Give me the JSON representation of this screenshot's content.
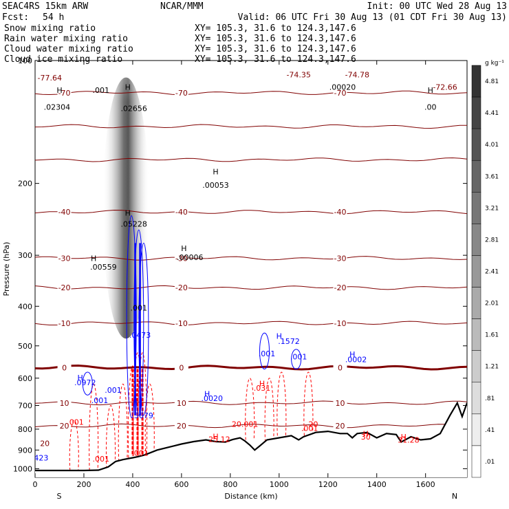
{
  "header": {
    "model": "SEAC4RS 15km ARW",
    "fcst_label": "Fcst:",
    "fcst_value": "54 h",
    "center": "NCAR/MMM",
    "init": "Init: 00 UTC Wed 28 Aug 13",
    "valid": "Valid: 06 UTC Fri 30 Aug 13 (01 CDT Fri 30 Aug 13)"
  },
  "fields": [
    {
      "name": "Snow mixing ratio",
      "xy": "XY= 105.3, 31.6 to 124.3,147.6",
      "color": "#000000"
    },
    {
      "name": "Rain water mixing ratio",
      "xy": "XY= 105.3, 31.6 to 124.3,147.6",
      "color": "#ff0000"
    },
    {
      "name": "Cloud water mixing ratio",
      "xy": "XY= 105.3, 31.6 to 124.3,147.6",
      "color": "#0000ff"
    },
    {
      "name": "Cloud ice mixing ratio",
      "xy": "XY= 105.3, 31.6 to 124.3,147.6",
      "color": "#000000"
    }
  ],
  "chart_data": {
    "type": "heatmap",
    "xlabel": "Distance (km)",
    "ylabel": "Pressure (hPa)",
    "xlim": [
      0,
      1770
    ],
    "ylim": [
      1050,
      100
    ],
    "x_ticks": [
      "0",
      "200",
      "400",
      "600",
      "800",
      "1000",
      "1200",
      "1400",
      "1600"
    ],
    "x_tick_values": [
      0,
      200,
      400,
      600,
      800,
      1000,
      1200,
      1400,
      1600
    ],
    "y_ticks": [
      "100",
      "200",
      "300",
      "400",
      "500",
      "600",
      "700",
      "800",
      "900",
      "1000"
    ],
    "y_tick_values": [
      100,
      200,
      300,
      400,
      500,
      600,
      700,
      800,
      900,
      1000
    ],
    "x_end_labels": {
      "left": "S",
      "right": "N"
    },
    "colorbar": {
      "unit": "g kg⁻¹",
      "ticks": [
        "4.81",
        "4.41",
        "4.01",
        "3.61",
        "3.21",
        "2.81",
        "2.41",
        "2.01",
        "1.61",
        "1.21",
        ".81",
        ".41",
        ".01"
      ],
      "values": [
        4.81,
        4.41,
        4.01,
        3.61,
        3.21,
        2.81,
        2.41,
        2.01,
        1.61,
        1.21,
        0.81,
        0.41,
        0.01
      ],
      "color_low": "#ffffff",
      "color_high": "#333333"
    },
    "isotherms": [
      {
        "value": -70,
        "label": "-70",
        "p": 120
      },
      {
        "value": -60,
        "label": "",
        "p": 145
      },
      {
        "value": -50,
        "label": "",
        "p": 175
      },
      {
        "value": -40,
        "label": "-40",
        "p": 235
      },
      {
        "value": -30,
        "label": "-30",
        "p": 305
      },
      {
        "value": -20,
        "label": "-20",
        "p": 360
      },
      {
        "value": -10,
        "label": "-10",
        "p": 440
      },
      {
        "value": 0,
        "label": "0",
        "p": 565
      },
      {
        "value": 10,
        "label": "10",
        "p": 690
      },
      {
        "value": 20,
        "label": "20",
        "p": 785
      }
    ],
    "isotherm_colors": {
      "normal": "#800000",
      "freezing": "#800000"
    },
    "terrain": [
      [
        0,
        1010
      ],
      [
        100,
        1010
      ],
      [
        200,
        1010
      ],
      [
        260,
        1008
      ],
      [
        300,
        990
      ],
      [
        330,
        960
      ],
      [
        360,
        950
      ],
      [
        380,
        945
      ],
      [
        400,
        940
      ],
      [
        420,
        935
      ],
      [
        450,
        925
      ],
      [
        500,
        900
      ],
      [
        550,
        885
      ],
      [
        600,
        870
      ],
      [
        650,
        858
      ],
      [
        700,
        850
      ],
      [
        740,
        858
      ],
      [
        780,
        860
      ],
      [
        810,
        848
      ],
      [
        840,
        840
      ],
      [
        860,
        855
      ],
      [
        880,
        875
      ],
      [
        900,
        900
      ],
      [
        920,
        880
      ],
      [
        950,
        850
      ],
      [
        1000,
        840
      ],
      [
        1050,
        830
      ],
      [
        1080,
        850
      ],
      [
        1100,
        835
      ],
      [
        1150,
        815
      ],
      [
        1200,
        810
      ],
      [
        1250,
        820
      ],
      [
        1280,
        820
      ],
      [
        1300,
        840
      ],
      [
        1320,
        820
      ],
      [
        1360,
        815
      ],
      [
        1400,
        840
      ],
      [
        1440,
        820
      ],
      [
        1480,
        825
      ],
      [
        1500,
        860
      ],
      [
        1540,
        835
      ],
      [
        1580,
        850
      ],
      [
        1620,
        845
      ],
      [
        1660,
        820
      ],
      [
        1700,
        740
      ],
      [
        1730,
        690
      ],
      [
        1750,
        745
      ],
      [
        1770,
        690
      ]
    ],
    "annotations": [
      {
        "text": "H",
        "x": 100,
        "p": 120,
        "color": "#000000"
      },
      {
        "text": ".02304",
        "x": 90,
        "p": 132,
        "color": "#000000"
      },
      {
        "text": ".001",
        "x": 270,
        "p": 120,
        "color": "#000000"
      },
      {
        "text": "H",
        "x": 380,
        "p": 118,
        "color": "#000000"
      },
      {
        "text": ".02656",
        "x": 405,
        "p": 133,
        "color": "#000000"
      },
      {
        "text": ".00053",
        "x": 740,
        "p": 205,
        "color": "#000000"
      },
      {
        "text": "H",
        "x": 740,
        "p": 190,
        "color": "#000000"
      },
      {
        "text": ".05228",
        "x": 405,
        "p": 255,
        "color": "#000000"
      },
      {
        "text": "H",
        "x": 380,
        "p": 240,
        "color": "#000000"
      },
      {
        "text": ".00559",
        "x": 280,
        "p": 325,
        "color": "#000000"
      },
      {
        "text": "H",
        "x": 240,
        "p": 310,
        "color": "#000000"
      },
      {
        "text": ".00006",
        "x": 635,
        "p": 308,
        "color": "#000000"
      },
      {
        "text": "H",
        "x": 610,
        "p": 293,
        "color": "#000000"
      },
      {
        "text": "H",
        "x": 1620,
        "p": 120,
        "color": "#000000"
      },
      {
        "text": ".00",
        "x": 1620,
        "p": 132,
        "color": "#000000"
      },
      {
        "text": ".00020",
        "x": 1260,
        "p": 118,
        "color": "#000000"
      },
      {
        "text": "-74.35",
        "x": 1080,
        "p": 110,
        "color": "#800000"
      },
      {
        "text": "-74.78",
        "x": 1320,
        "p": 110,
        "color": "#800000"
      },
      {
        "text": "-72.66",
        "x": 1680,
        "p": 118,
        "color": "#800000"
      },
      {
        "text": "-77.64",
        "x": 60,
        "p": 112,
        "color": "#800000"
      },
      {
        "text": ".001",
        "x": 425,
        "p": 410,
        "color": "#000000"
      },
      {
        "text": ".0473",
        "x": 430,
        "p": 478,
        "color": "#0000ff"
      },
      {
        "text": "H",
        "x": 1000,
        "p": 480,
        "color": "#0000ff"
      },
      {
        "text": ".1572",
        "x": 1040,
        "p": 495,
        "color": "#0000ff"
      },
      {
        "text": ".001",
        "x": 950,
        "p": 530,
        "color": "#0000ff"
      },
      {
        "text": ".001",
        "x": 1080,
        "p": 540,
        "color": "#0000ff"
      },
      {
        "text": "H",
        "x": 1300,
        "p": 532,
        "color": "#0000ff"
      },
      {
        "text": ".0002",
        "x": 1315,
        "p": 548,
        "color": "#0000ff"
      },
      {
        "text": "H",
        "x": 185,
        "p": 608,
        "color": "#0000ff"
      },
      {
        "text": ".0972",
        "x": 205,
        "p": 624,
        "color": "#0000ff"
      },
      {
        "text": ".001",
        "x": 320,
        "p": 652,
        "color": "#0000ff"
      },
      {
        "text": ".001",
        "x": 265,
        "p": 690,
        "color": "#0000ff"
      },
      {
        "text": "H",
        "x": 705,
        "p": 666,
        "color": "#0000ff"
      },
      {
        "text": ".0020",
        "x": 725,
        "p": 682,
        "color": "#0000ff"
      },
      {
        "text": "H",
        "x": 930,
        "p": 628,
        "color": "#ff0000"
      },
      {
        "text": ".031",
        "x": 930,
        "p": 644,
        "color": "#ff0000"
      },
      {
        "text": ".5679",
        "x": 440,
        "p": 752,
        "color": "#0000ff"
      },
      {
        "text": ".001",
        "x": 165,
        "p": 781,
        "color": "#ff0000"
      },
      {
        "text": "20.001",
        "x": 860,
        "p": 790,
        "color": "#ff0000"
      },
      {
        "text": "20",
        "x": 1140,
        "p": 790,
        "color": "#ff0000"
      },
      {
        "text": ".001",
        "x": 1125,
        "p": 808,
        "color": "#ff0000"
      },
      {
        "text": "H",
        "x": 740,
        "p": 846,
        "color": "#ff0000"
      },
      {
        "text": "25.12",
        "x": 755,
        "p": 860,
        "color": "#ff0000"
      },
      {
        "text": "H",
        "x": 1355,
        "p": 833,
        "color": "#ff0000"
      },
      {
        "text": "30",
        "x": 1355,
        "p": 848,
        "color": "#ff0000"
      },
      {
        "text": "H",
        "x": 1510,
        "p": 848,
        "color": "#ff0000"
      },
      {
        "text": "31.28",
        "x": 1530,
        "p": 863,
        "color": "#ff0000"
      },
      {
        "text": ".001",
        "x": 270,
        "p": 960,
        "color": "#ff0000"
      },
      {
        "text": ".001",
        "x": 430,
        "p": 930,
        "color": "#ff0000"
      },
      {
        "text": "20",
        "x": 40,
        "p": 880,
        "color": "#800000"
      },
      {
        "text": ".423",
        "x": 20,
        "p": 955,
        "color": "#0000ff"
      }
    ],
    "snow_core": {
      "x": 395,
      "p_top": 110,
      "p_bottom": 480
    },
    "rain_columns": [
      {
        "x": 160,
        "p_top": 760,
        "p_bottom": 1010
      },
      {
        "x": 240,
        "p_top": 620,
        "p_bottom": 1010
      },
      {
        "x": 310,
        "p_top": 700,
        "p_bottom": 1000
      },
      {
        "x": 360,
        "p_top": 620,
        "p_bottom": 960
      },
      {
        "x": 400,
        "p_top": 560,
        "p_bottom": 940
      },
      {
        "x": 420,
        "p_top": 520,
        "p_bottom": 930
      },
      {
        "x": 440,
        "p_top": 520,
        "p_bottom": 930
      },
      {
        "x": 470,
        "p_top": 620,
        "p_bottom": 930
      },
      {
        "x": 880,
        "p_top": 600,
        "p_bottom": 850
      },
      {
        "x": 960,
        "p_top": 600,
        "p_bottom": 860
      },
      {
        "x": 1010,
        "p_top": 580,
        "p_bottom": 830
      },
      {
        "x": 1120,
        "p_top": 580,
        "p_bottom": 830
      }
    ],
    "cloud_water_contours": [
      {
        "x": 395,
        "p_top": 240,
        "p_bottom": 750
      },
      {
        "x": 425,
        "p_top": 260,
        "p_bottom": 740
      },
      {
        "x": 445,
        "p_top": 280,
        "p_bottom": 740
      },
      {
        "x": 215,
        "p_top": 580,
        "p_bottom": 660
      },
      {
        "x": 940,
        "p_top": 465,
        "p_bottom": 570
      },
      {
        "x": 1070,
        "p_top": 510,
        "p_bottom": 570
      }
    ]
  }
}
